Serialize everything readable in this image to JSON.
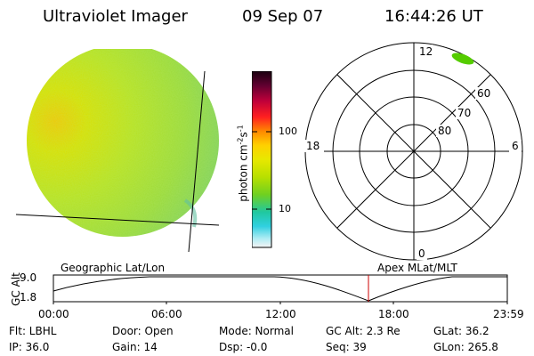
{
  "header": {
    "instrument": "Ultraviolet Imager",
    "date": "09 Sep 07",
    "time": "16:44:26 UT"
  },
  "colorbar": {
    "unit_label_main": "photon cm",
    "unit_exp1": "-2",
    "unit_mid": "s",
    "unit_exp2": "-1",
    "tick_100": "100",
    "tick_10": "10"
  },
  "polar_plot": {
    "mlt_top": "12",
    "mlt_left": "18",
    "mlt_right": "6",
    "mlt_bottom": "0",
    "lat_60": "60",
    "lat_70": "70",
    "lat_80": "80"
  },
  "timeline": {
    "axis_label": "GC Alt",
    "y_top": "9.0",
    "y_bottom": "1.8",
    "left_title": "Geographic Lat/Lon",
    "right_title": "Apex MLat/MLT",
    "ticks": [
      "00:00",
      "06:00",
      "12:00",
      "18:00",
      "23:59"
    ],
    "marker_color": "#cc0000"
  },
  "info": {
    "flt": "Flt: LBHL",
    "ip": "IP: 36.0",
    "door": "Door: Open",
    "gain": "Gain: 14",
    "mode": "Mode: Normal",
    "dsp": "Dsp:   -0.0",
    "gc_alt": "GC Alt: 2.3 Re",
    "seq": "Seq: 39",
    "glat": "GLat:  36.2",
    "glon": "GLon: 265.8"
  }
}
